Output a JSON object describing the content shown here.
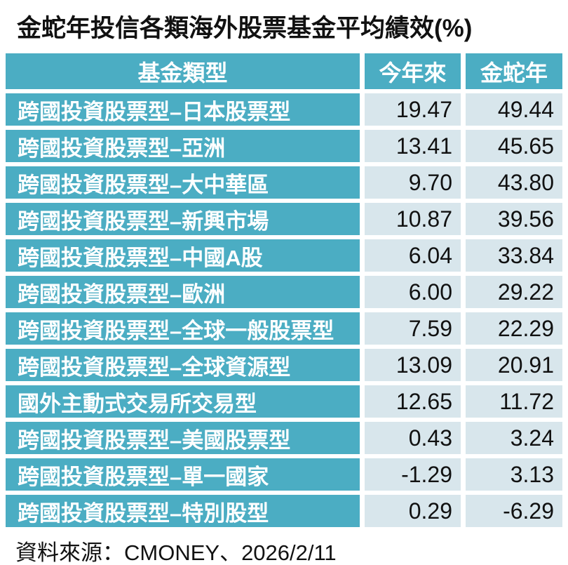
{
  "title": "金蛇年投信各類海外股票基金平均績效(%)",
  "colors": {
    "teal": "#4BADC3",
    "light_blue": "#D8E6EC",
    "text": "#111111",
    "header_text": "#ffffff"
  },
  "chart_data": {
    "type": "table",
    "title": "金蛇年投信各類海外股票基金平均績效(%)",
    "columns": [
      "基金類型",
      "今年來",
      "金蛇年"
    ],
    "rows": [
      [
        "跨國投資股票型–日本股票型",
        "19.47",
        "49.44"
      ],
      [
        "跨國投資股票型–亞洲",
        "13.41",
        "45.65"
      ],
      [
        "跨國投資股票型–大中華區",
        "9.70",
        "43.80"
      ],
      [
        "跨國投資股票型–新興市場",
        "10.87",
        "39.56"
      ],
      [
        "跨國投資股票型–中國A股",
        "6.04",
        "33.84"
      ],
      [
        "跨國投資股票型–歐洲",
        "6.00",
        "29.22"
      ],
      [
        "跨國投資股票型–全球一般股票型",
        "7.59",
        "22.29"
      ],
      [
        "跨國投資股票型–全球資源型",
        "13.09",
        "20.91"
      ],
      [
        "國外主動式交易所交易型",
        "12.65",
        "11.72"
      ],
      [
        "跨國投資股票型–美國股票型",
        "0.43",
        "3.24"
      ],
      [
        "跨國投資股票型–單一國家",
        "-1.29",
        "3.13"
      ],
      [
        "跨國投資股票型–特別股型",
        "0.29",
        "-6.29"
      ]
    ],
    "source": "資料來源：CMONEY、2026/2/11"
  },
  "footer": {
    "source": "資料來源：CMONEY、2026/2/11"
  }
}
